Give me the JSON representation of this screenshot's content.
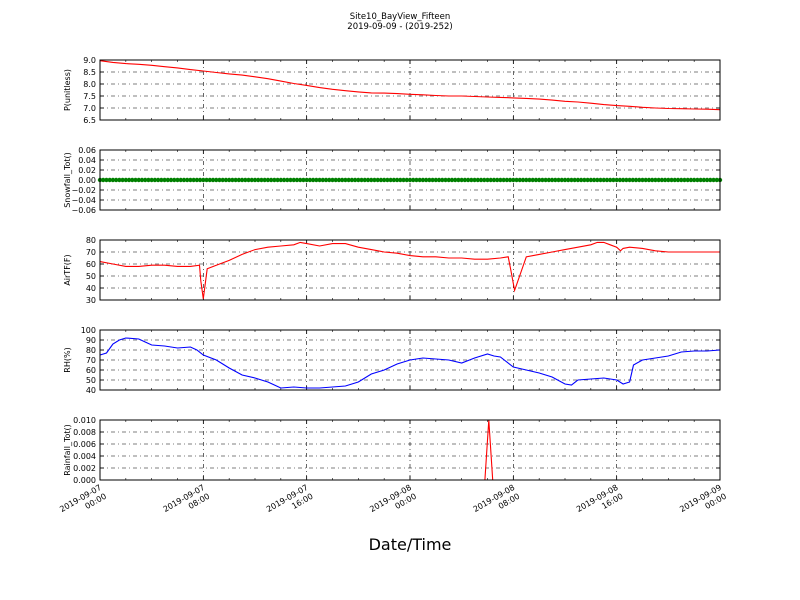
{
  "title": "Site10_BayView_Fifteen",
  "subtitle": "2019-09-09 - (2019-252)",
  "xlabel": "Date/Time",
  "x_ticks": [
    {
      "line1": "2019-09-07",
      "line2": "00:00"
    },
    {
      "line1": "2019-09-07",
      "line2": "08:00"
    },
    {
      "line1": "2019-09-07",
      "line2": "16:00"
    },
    {
      "line1": "2019-09-08",
      "line2": "00:00"
    },
    {
      "line1": "2019-09-08",
      "line2": "08:00"
    },
    {
      "line1": "2019-09-08",
      "line2": "16:00"
    },
    {
      "line1": "2019-09-09",
      "line2": "00:00"
    }
  ],
  "chart_data": [
    {
      "type": "line",
      "ylabel": "P(unitless)",
      "color": "#ff0000",
      "ylim": [
        6.5,
        9.0
      ],
      "yticks": [
        "6.5",
        "7.0",
        "7.5",
        "8.0",
        "8.5",
        "9.0"
      ],
      "x_hours": [
        0,
        1,
        2,
        3,
        4,
        5,
        6,
        7,
        8,
        9,
        10,
        11,
        12,
        13,
        14,
        15,
        16,
        17,
        18,
        19,
        20,
        21,
        22,
        23,
        24,
        25,
        26,
        27,
        28,
        29,
        30,
        31,
        32,
        33,
        34,
        35,
        36,
        37,
        38,
        39,
        40,
        41,
        42,
        43,
        44,
        45,
        46,
        47,
        48
      ],
      "values": [
        8.97,
        8.9,
        8.85,
        8.82,
        8.78,
        8.72,
        8.67,
        8.6,
        8.54,
        8.48,
        8.42,
        8.37,
        8.3,
        8.22,
        8.12,
        8.02,
        7.94,
        7.85,
        7.78,
        7.72,
        7.67,
        7.63,
        7.62,
        7.6,
        7.57,
        7.55,
        7.52,
        7.5,
        7.5,
        7.48,
        7.46,
        7.44,
        7.42,
        7.4,
        7.37,
        7.33,
        7.28,
        7.25,
        7.2,
        7.14,
        7.1,
        7.07,
        7.03,
        7.0,
        6.98,
        6.97,
        6.96,
        6.95,
        6.93
      ]
    },
    {
      "type": "scatter",
      "ylabel": "Snowfall_Tot()",
      "color": "#008000",
      "ylim": [
        -0.06,
        0.06
      ],
      "yticks": [
        "−0.06",
        "−0.04",
        "−0.02",
        "0.00",
        "0.02",
        "0.04",
        "0.06"
      ],
      "x_hours": [
        0,
        48
      ],
      "values": [
        0.0,
        0.0
      ]
    },
    {
      "type": "line",
      "ylabel": "AirTF(F)",
      "color": "#ff0000",
      "ylim": [
        30,
        80
      ],
      "yticks": [
        "30",
        "40",
        "50",
        "60",
        "70",
        "80"
      ],
      "x_hours": [
        0,
        1,
        2,
        3,
        4,
        5,
        6,
        7,
        7.7,
        7.8,
        8.0,
        8.3,
        9,
        10,
        11,
        12,
        13,
        14,
        15,
        15.5,
        16,
        17,
        18,
        19,
        20,
        21,
        22,
        23,
        24,
        25,
        26,
        27,
        28,
        29,
        30,
        31,
        31.6,
        31.8,
        32.1,
        33,
        34,
        35,
        36,
        37,
        38,
        38.5,
        39,
        39.5,
        40,
        40.3,
        40.5,
        41,
        42,
        43,
        44,
        45,
        46,
        47,
        48
      ],
      "values": [
        62,
        60,
        58,
        58,
        59,
        59,
        58,
        58,
        59,
        46,
        31,
        56,
        59,
        63,
        68,
        72,
        74,
        75,
        76,
        78,
        77,
        75,
        77,
        77,
        74,
        72,
        70,
        69,
        67,
        66,
        66,
        65,
        65,
        64,
        64,
        65,
        66,
        55,
        38,
        66,
        68,
        70,
        72,
        74,
        76,
        78,
        78,
        76,
        74,
        71,
        73,
        74,
        73,
        71,
        70,
        70,
        70,
        70,
        70
      ]
    },
    {
      "type": "line",
      "ylabel": "RH(%)",
      "color": "#0000ff",
      "ylim": [
        40,
        100
      ],
      "yticks": [
        "40",
        "50",
        "60",
        "70",
        "80",
        "90",
        "100"
      ],
      "x_hours": [
        0,
        0.5,
        1,
        1.5,
        2,
        3,
        3.5,
        4,
        5,
        6,
        7,
        7.5,
        8,
        9,
        10,
        11,
        12,
        13,
        13.5,
        14,
        15,
        16,
        17,
        18,
        19,
        20,
        21,
        22,
        23,
        24,
        25,
        26,
        27,
        28,
        29,
        30,
        30.5,
        31,
        32,
        33,
        34,
        35,
        36,
        36.5,
        37,
        38,
        39,
        40,
        40.5,
        41,
        41.3,
        42,
        43,
        44,
        45,
        46,
        47,
        48
      ],
      "values": [
        75,
        77,
        86,
        90,
        92,
        91,
        88,
        85,
        84,
        82,
        83,
        80,
        75,
        70,
        62,
        55,
        52,
        48,
        45,
        42,
        43,
        42,
        42,
        43,
        44,
        48,
        56,
        60,
        66,
        70,
        72,
        71,
        70,
        67,
        72,
        76,
        74,
        73,
        63,
        60,
        57,
        53,
        46,
        45,
        50,
        51,
        52,
        50,
        46,
        48,
        65,
        70,
        72,
        74,
        78,
        79,
        79,
        80
      ]
    },
    {
      "type": "line",
      "ylabel": "Rainfall_Tot()",
      "color": "#ff0000",
      "ylim": [
        0,
        0.01
      ],
      "yticks": [
        "0.000",
        "0.002",
        "0.004",
        "0.006",
        "0.008",
        "0.010"
      ],
      "x_hours": [
        0,
        29.8,
        30.1,
        30.4,
        48
      ],
      "values": [
        0,
        0,
        0.01,
        0,
        0
      ]
    }
  ]
}
